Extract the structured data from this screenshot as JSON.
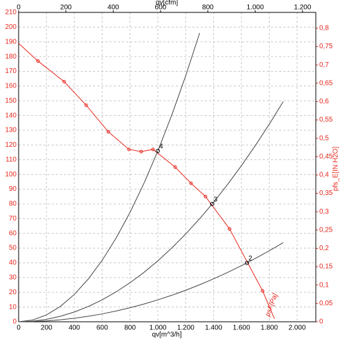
{
  "chart_data": {
    "type": "line",
    "x_label": "qv[m^3/h]",
    "x2_label": "qv[cfm]",
    "y2_label": "pfs_E[IN H2O]",
    "xlim": [
      0,
      2134
    ],
    "xticks": [
      0,
      200,
      400,
      600,
      800,
      {
        "value": 1000,
        "label": "1.000"
      },
      {
        "value": 1200,
        "label": "1.200"
      },
      {
        "value": 1400,
        "label": "1.400"
      },
      {
        "value": 1600,
        "label": "1.600"
      },
      {
        "value": 1800,
        "label": "1.800"
      },
      {
        "value": 2000,
        "label": "2.000"
      }
    ],
    "x2lim": [
      0,
      1256
    ],
    "x2ticks": [
      0,
      200,
      400,
      600,
      800,
      {
        "value": 1000,
        "label": "1.000"
      },
      {
        "value": 1200,
        "label": "1.200"
      }
    ],
    "ylim": [
      0,
      210
    ],
    "yticks": [
      0,
      10,
      20,
      30,
      40,
      50,
      60,
      70,
      80,
      90,
      100,
      110,
      120,
      130,
      140,
      150,
      160,
      170,
      180,
      190,
      200,
      210
    ],
    "y2lim": [
      0,
      0.843
    ],
    "y2ticks": [
      0,
      {
        "value": 0.05,
        "label": "0,05"
      },
      {
        "value": 0.1,
        "label": "0,1"
      },
      {
        "value": 0.15,
        "label": "0,15"
      },
      {
        "value": 0.2,
        "label": "0,2"
      },
      {
        "value": 0.25,
        "label": "0,25"
      },
      {
        "value": 0.3,
        "label": "0,3"
      },
      {
        "value": 0.35,
        "label": "0,35"
      },
      {
        "value": 0.4,
        "label": "0,4"
      },
      {
        "value": 0.45,
        "label": "0,45"
      },
      {
        "value": 0.5,
        "label": "0,5"
      },
      {
        "value": 0.55,
        "label": "0,55"
      },
      {
        "value": 0.6,
        "label": "0,6"
      },
      {
        "value": 0.65,
        "label": "0,65"
      },
      {
        "value": 0.7,
        "label": "0,7"
      },
      {
        "value": 0.75,
        "label": "0,75"
      },
      {
        "value": 0.8,
        "label": "0,8"
      }
    ],
    "grid": true,
    "series": [
      {
        "name": "psF[Pa]",
        "color": "#e8281e",
        "markers": true,
        "x": [
          0,
          139,
          327,
          485,
          644,
          792,
          880,
          965,
          1124,
          1238,
          1342,
          1515,
          1752,
          1837
        ],
        "values": [
          189,
          177,
          163,
          147,
          129,
          117,
          115.5,
          117,
          105,
          94,
          85,
          63,
          21,
          2
        ]
      },
      {
        "color": "#444444",
        "markers": false,
        "x": [
          0,
          100,
          200,
          300,
          400,
          500,
          600,
          700,
          800,
          900,
          1000,
          1100,
          1200,
          1300
        ],
        "values": [
          0,
          1.16,
          4.64,
          10.44,
          18.56,
          29,
          41.76,
          56.84,
          74.24,
          93.96,
          116,
          140.36,
          167.04,
          196.04
        ]
      },
      {
        "color": "#444444",
        "markers": false,
        "x": [
          0,
          100,
          200,
          300,
          400,
          500,
          600,
          700,
          800,
          900,
          1000,
          1100,
          1200,
          1300,
          1400,
          1500,
          1600,
          1700,
          1800,
          1900
        ],
        "values": [
          0,
          0.41,
          1.66,
          3.73,
          6.62,
          10.35,
          14.9,
          20.29,
          26.5,
          33.53,
          41.4,
          50.09,
          59.62,
          69.97,
          81.14,
          93.15,
          105.98,
          119.65,
          134.14,
          149.45
        ]
      },
      {
        "color": "#444444",
        "markers": false,
        "x": [
          0,
          100,
          200,
          300,
          400,
          500,
          600,
          700,
          800,
          900,
          1000,
          1100,
          1200,
          1300,
          1400,
          1500,
          1600,
          1700,
          1800,
          1900
        ],
        "values": [
          0,
          0.15,
          0.59,
          1.34,
          2.38,
          3.72,
          5.35,
          7.29,
          9.52,
          12.04,
          14.87,
          17.99,
          21.41,
          25.13,
          29.15,
          33.46,
          38.07,
          42.98,
          48.18,
          53.68
        ]
      }
    ],
    "points": [
      {
        "label": "4",
        "x": 1000,
        "y": 116
      },
      {
        "label": "3",
        "x": 1390,
        "y": 80
      },
      {
        "label": "2",
        "x": 1640,
        "y": 40
      }
    ]
  }
}
